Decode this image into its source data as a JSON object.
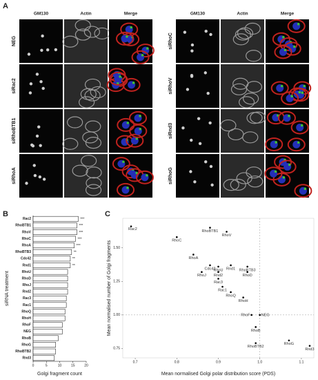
{
  "figure": {
    "panel_a": {
      "label": "A",
      "column_titles": [
        "GM130",
        "Actin",
        "Merge"
      ],
      "groups": [
        [
          "NEG",
          "siRac2",
          "siRhoBTB1",
          "siRhoA"
        ],
        [
          "siRhoC",
          "siRhoV",
          "siRnd3",
          "siRhoG"
        ]
      ]
    }
  },
  "chart_data": [
    {
      "panel": "B",
      "type": "bar",
      "orientation": "horizontal",
      "categories": [
        "Rac2",
        "RhoBTB1",
        "RhoV",
        "RhoC",
        "RhoA",
        "RhoBTB3",
        "Cdc42",
        "Rnd1",
        "RhoU",
        "RhoD",
        "RhoJ",
        "Rnd2",
        "Rac3",
        "Rac1",
        "RhoQ",
        "RhoH",
        "RhoF",
        "NEG",
        "RhoB",
        "RhoG",
        "RhoBTB2",
        "Rnd3"
      ],
      "values": [
        17,
        16.5,
        16.5,
        16,
        15.5,
        14.5,
        14,
        14,
        13,
        13,
        13,
        13,
        12.5,
        12.5,
        12,
        12,
        11,
        11,
        9.5,
        8.5,
        8.5,
        8
      ],
      "significance": [
        "***",
        "***",
        "***",
        "***",
        "***",
        "**",
        "**",
        "**",
        null,
        null,
        null,
        null,
        null,
        null,
        null,
        null,
        null,
        null,
        null,
        null,
        null,
        null
      ],
      "xlabel": "Golgi fragment count",
      "ylabel": "siRNA treatment",
      "xlim": [
        0,
        20
      ],
      "xticks": [
        0,
        5,
        10,
        15,
        20
      ],
      "color": "#ffffff",
      "edge_color": "#000000"
    },
    {
      "panel": "C",
      "type": "scatter",
      "labels": [
        "Rac2",
        "RhoBTB1",
        "RhoV",
        "RhoC",
        "RhoA",
        "RhoBTB3",
        "Cdc42",
        "RhoU",
        "Rnd1",
        "RhoD",
        "RhoJ",
        "Rnd2",
        "Rac3",
        "Rac1",
        "RhoQ",
        "RhoH",
        "RhoF",
        "NEG",
        "RhoB",
        "RhoBTB2",
        "RhoG",
        "Rnd3"
      ],
      "x": [
        0.69,
        0.88,
        0.92,
        0.8,
        0.84,
        0.97,
        0.88,
        0.9,
        0.93,
        0.97,
        0.86,
        0.9,
        0.9,
        0.91,
        0.93,
        0.96,
        0.98,
        1.0,
        0.99,
        0.99,
        1.07,
        1.12
      ],
      "values": [
        1.66,
        1.65,
        1.62,
        1.58,
        1.45,
        1.36,
        1.37,
        1.36,
        1.37,
        1.32,
        1.32,
        1.32,
        1.27,
        1.21,
        1.17,
        1.13,
        1.0,
        1.0,
        0.91,
        0.79,
        0.81,
        0.77
      ],
      "xlabel": "Mean normalised Golgi polar distribution score (PDS)",
      "ylabel": "Mean normalised number of Golgi fragments",
      "xlim": [
        0.67,
        1.13
      ],
      "ylim": [
        0.68,
        1.72
      ],
      "xticks": [
        0.7,
        0.8,
        0.9,
        {
          "value": 1,
          "label": "1.0"
        },
        1.1
      ],
      "yticks": [
        0.75,
        {
          "value": 1,
          "label": "1.00"
        },
        1.25,
        {
          "value": 1.5,
          "label": "1.50"
        }
      ],
      "reference_lines": {
        "x": 1,
        "y": 1
      },
      "color": "#000000"
    }
  ]
}
